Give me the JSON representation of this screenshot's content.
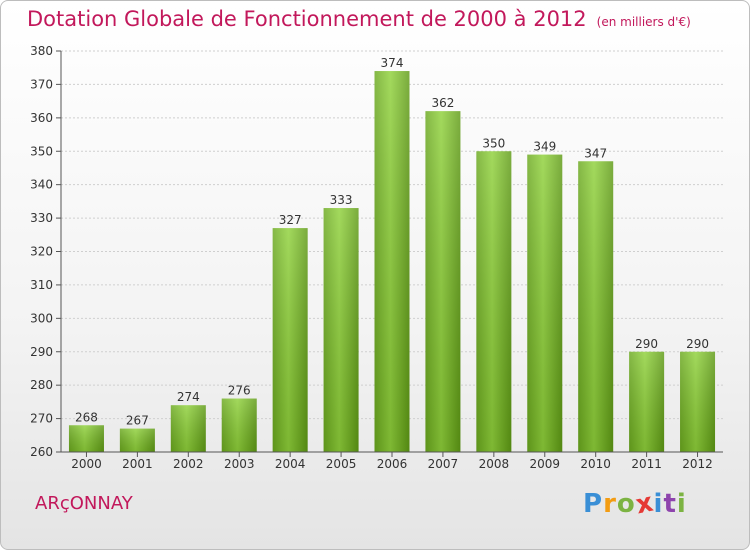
{
  "chart_data": {
    "type": "bar",
    "title": "Dotation Globale de Fonctionnement de 2000 à 2012",
    "subtitle": "(en milliers d'€)",
    "categories": [
      "2000",
      "2001",
      "2002",
      "2003",
      "2004",
      "2005",
      "2006",
      "2007",
      "2008",
      "2009",
      "2010",
      "2011",
      "2012"
    ],
    "values": [
      268,
      267,
      274,
      276,
      327,
      333,
      374,
      362,
      350,
      349,
      347,
      290,
      290
    ],
    "ylim": [
      260,
      380
    ],
    "yticks": [
      260,
      270,
      280,
      290,
      300,
      310,
      320,
      330,
      340,
      350,
      360,
      370,
      380
    ],
    "grid": true,
    "bar_color": "#7cbf2a",
    "bar_color_dark": "#5e9a14",
    "title_color": "#c2185b"
  },
  "footer": {
    "commune": "ARçONNAY",
    "logo_letters": [
      "P",
      "r",
      "o",
      "x",
      "i",
      "t",
      "i"
    ],
    "logo_colors": [
      "#3a8fd6",
      "#f39c12",
      "#7cb342",
      "#e53935",
      "#3a8fd6",
      "#8e44ad",
      "#7cb342"
    ]
  }
}
